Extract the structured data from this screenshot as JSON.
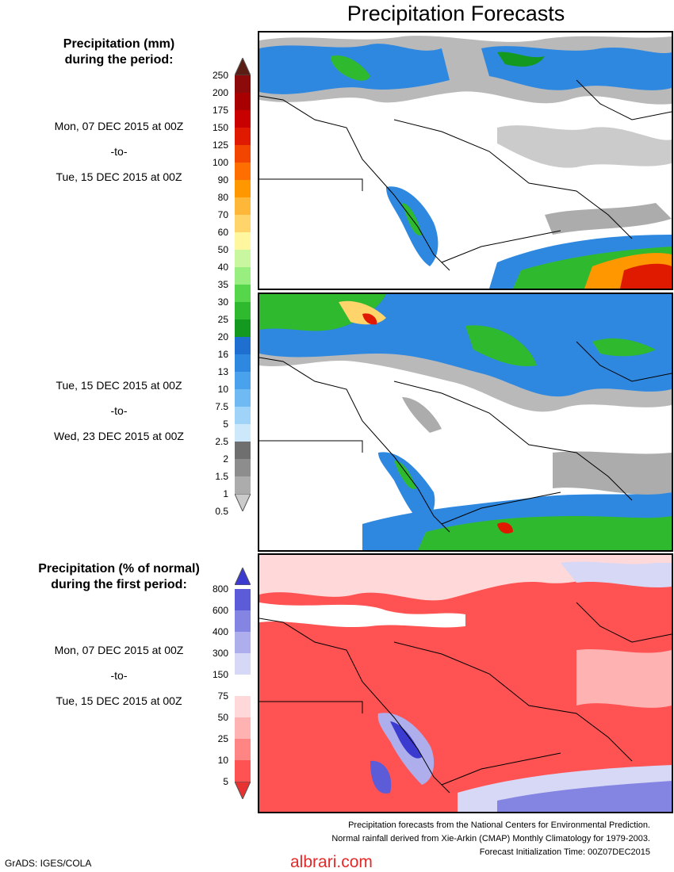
{
  "title": "Precipitation Forecasts",
  "legend_mm": {
    "heading_line1": "Precipitation (mm)",
    "heading_line2": "during the period:",
    "ticks": [
      "250",
      "200",
      "175",
      "150",
      "125",
      "100",
      "90",
      "80",
      "70",
      "60",
      "50",
      "40",
      "35",
      "30",
      "25",
      "20",
      "16",
      "13",
      "10",
      "7.5",
      "5",
      "2.5",
      "2",
      "1.5",
      "1",
      "0.5"
    ],
    "colors": [
      "#5a1e14",
      "#8c0a0a",
      "#a80000",
      "#c80000",
      "#e01a00",
      "#f24500",
      "#ff6f00",
      "#ff9700",
      "#ffb73a",
      "#ffd46a",
      "#fff7a0",
      "#c9f7a0",
      "#98ee7e",
      "#56d64a",
      "#2fb92f",
      "#13991f",
      "#1f6fd1",
      "#2e88e0",
      "#4ba2ec",
      "#6fbaf2",
      "#9fd3f7",
      "#cde8fb",
      "#6f6f6f",
      "#8d8d8d",
      "#acacac",
      "#cbcbcb"
    ]
  },
  "legend_pct": {
    "heading_line1": "Precipitation (% of normal)",
    "heading_line2": "during the first period:",
    "ticks": [
      "800",
      "600",
      "400",
      "300",
      "150",
      "75",
      "50",
      "25",
      "10",
      "5"
    ],
    "colors": [
      "#3b3bd0",
      "#5c5cd8",
      "#8484e2",
      "#aeaeec",
      "#d7d7f6",
      "#ffffff",
      "#ffd9d9",
      "#ffb2b2",
      "#ff8484",
      "#ff5252",
      "#e83232"
    ]
  },
  "period1": {
    "start": "Mon, 07 DEC 2015 at 00Z",
    "sep": "-to-",
    "end": "Tue, 15 DEC 2015 at 00Z"
  },
  "period2": {
    "start": "Tue, 15 DEC 2015 at 00Z",
    "sep": "-to-",
    "end": "Wed, 23 DEC 2015 at 00Z"
  },
  "period3": {
    "start": "Mon, 07 DEC 2015 at 00Z",
    "sep": "-to-",
    "end": "Tue, 15 DEC 2015 at 00Z"
  },
  "footer": {
    "line1": "Precipitation forecasts from the National Centers for Environmental Prediction.",
    "line2": "Normal rainfall derived from Xie-Arkin (CMAP) Monthly Climatology for 1979-2003.",
    "line3": "Forecast Initialization Time: 00Z07DEC2015"
  },
  "credit": "GrADS: IGES/COLA",
  "watermark": "albrari.com"
}
